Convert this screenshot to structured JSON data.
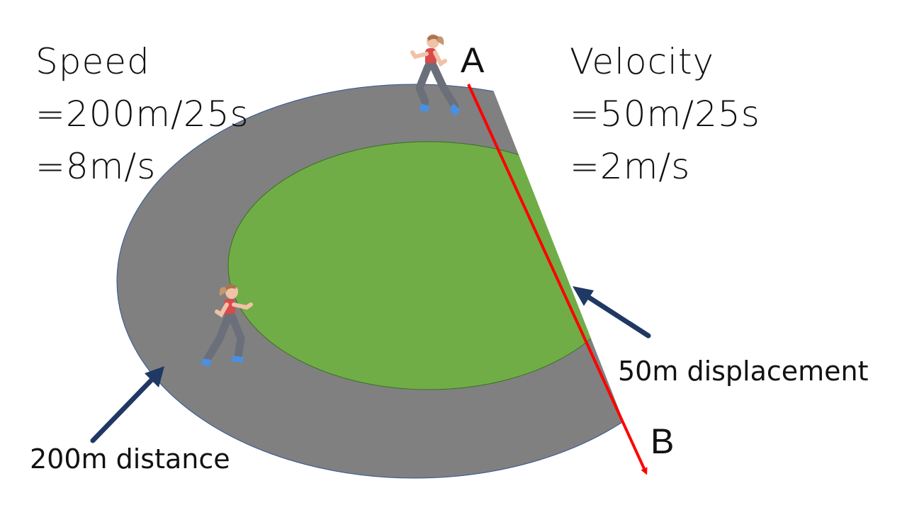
{
  "speed": {
    "title": "Speed",
    "formula": "=200m/25s",
    "result": "=8m/s"
  },
  "velocity": {
    "title": "Velocity",
    "formula": "=50m/25s",
    "result": "=2m/s"
  },
  "points": {
    "a": "A",
    "b": "B"
  },
  "labels": {
    "distance": "200m distance",
    "displacement": "50m displacement"
  },
  "colors": {
    "track": "#808080",
    "field": "#70AD47",
    "displacement_arrow": "#FF0000",
    "pointer_arrow": "#1F3864"
  }
}
